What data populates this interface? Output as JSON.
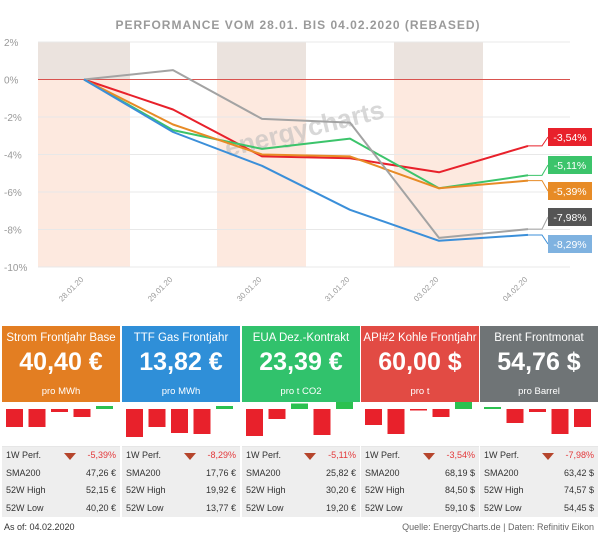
{
  "chart_data": {
    "type": "line",
    "title": "PERFORMANCE   VOM 28.01.  BIS 04.02.2020   (REBASED)",
    "categories": [
      "28.01.20",
      "29.01.20",
      "30.01.20",
      "31.01.20",
      "03.02.20",
      "04.02.20"
    ],
    "ylim": [
      -10,
      2
    ],
    "yticks": [
      "2%",
      "0%",
      "-2%",
      "-4%",
      "-6%",
      "-8%",
      "-10%"
    ],
    "series": [
      {
        "color": "#e8212b",
        "values": [
          0,
          -1.6,
          -4.1,
          -4.2,
          -4.95,
          -3.54
        ],
        "label": "-3,54%"
      },
      {
        "color": "#3cc46b",
        "values": [
          0,
          -2.7,
          -3.7,
          -3.15,
          -5.8,
          -5.11
        ],
        "label": "-5,11%"
      },
      {
        "color": "#e78b26",
        "values": [
          0,
          -2.4,
          -4.0,
          -4.1,
          -5.8,
          -5.39
        ],
        "label": "-5,39%"
      },
      {
        "color": "#a3a3a3",
        "values": [
          0,
          0.5,
          -2.1,
          -2.3,
          -8.45,
          -7.98
        ],
        "label": "-7,98%"
      },
      {
        "color": "#3b8fd9",
        "values": [
          0,
          -2.8,
          -4.6,
          -6.95,
          -8.6,
          -8.29
        ],
        "label": "-8,29%"
      }
    ],
    "label_box_colors": [
      "#e8212b",
      "#3cc46b",
      "#e78b26",
      "#555555",
      "#7fb2e0"
    ],
    "watermark": "energycharts"
  },
  "cards": [
    {
      "name": "Strom Frontjahr Base",
      "price": "40,40 €",
      "unit": "pro MWh",
      "color": "#e37e22",
      "perf_label": "1W Perf.",
      "perf": "-5,39%",
      "sma_label": "SMA200",
      "sma": "47,26 €",
      "high_label": "52W High",
      "high": "52,15 €",
      "low_label": "52W Low",
      "low": "40,20 €",
      "bars": [
        -1.8,
        -1.8,
        -0.3,
        -0.8,
        0.3
      ]
    },
    {
      "name": "TTF Gas Frontjahr",
      "price": "13,82 €",
      "unit": "pro MWh",
      "color": "#2f8fd8",
      "perf_label": "1W Perf.",
      "perf": "-8,29%",
      "sma_label": "SMA200",
      "sma": "17,76 €",
      "high_label": "52W High",
      "high": "19,92 €",
      "low_label": "52W Low",
      "low": "13,77 €",
      "bars": [
        -2.8,
        -1.8,
        -2.4,
        -2.5,
        0.3
      ]
    },
    {
      "name": "EUA Dez.-Kontrakt",
      "price": "23,39 €",
      "unit": "pro t CO2",
      "color": "#31c26c",
      "perf_label": "1W Perf.",
      "perf": "-5,11%",
      "sma_label": "SMA200",
      "sma": "25,82 €",
      "high_label": "52W High",
      "high": "30,20 €",
      "low_label": "52W Low",
      "low": "19,20 €",
      "bars": [
        -2.7,
        -1.0,
        0.55,
        -2.6,
        0.7
      ]
    },
    {
      "name": "API#2 Kohle Frontjahr",
      "price": "60,00 $",
      "unit": "pro t",
      "color": "#e24b44",
      "perf_label": "1W Perf.",
      "perf": "-3,54%",
      "sma_label": "SMA200",
      "sma": "68,19 $",
      "high_label": "52W High",
      "high": "84,50 $",
      "low_label": "52W Low",
      "low": "59,10 $",
      "bars": [
        -1.6,
        -2.5,
        -0.15,
        -0.8,
        0.7
      ]
    },
    {
      "name": "Brent Frontmonat",
      "price": "54,76 $",
      "unit": "pro Barrel",
      "color": "#6f7476",
      "perf_label": "1W Perf.",
      "perf": "-7,98%",
      "sma_label": "SMA200",
      "sma": "63,42 $",
      "high_label": "52W High",
      "high": "74,57 $",
      "low_label": "52W Low",
      "low": "54,45 $",
      "bars": [
        0.2,
        -1.4,
        -0.3,
        -2.5,
        -1.8
      ]
    }
  ],
  "footer": {
    "as_of": "As of: 04.02.2020",
    "source": "Quelle: EnergyCharts.de | Daten: Refinitiv Eikon"
  }
}
